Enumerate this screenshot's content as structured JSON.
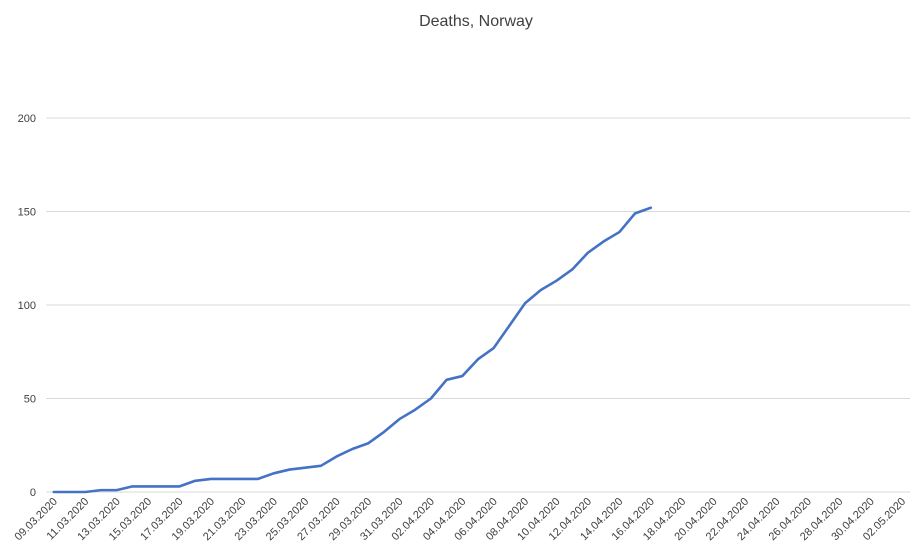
{
  "chart_data": {
    "type": "line",
    "title": "Deaths, Norway",
    "xlabel": "",
    "ylabel": "",
    "ylim": [
      0,
      200
    ],
    "yticks": [
      0,
      50,
      100,
      150,
      200
    ],
    "grid": true,
    "legend": "none",
    "line_color": "#4472c4",
    "x_start": "09.03.2020",
    "x_end": "03.05.2020",
    "x_tick_labels": [
      "09.03.2020",
      "11.03.2020",
      "13.03.2020",
      "15.03.2020",
      "17.03.2020",
      "19.03.2020",
      "21.03.2020",
      "23.03.2020",
      "25.03.2020",
      "27.03.2020",
      "29.03.2020",
      "31.03.2020",
      "02.04.2020",
      "04.04.2020",
      "06.04.2020",
      "08.04.2020",
      "10.04.2020",
      "12.04.2020",
      "14.04.2020",
      "16.04.2020",
      "18.04.2020",
      "20.04.2020",
      "22.04.2020",
      "24.04.2020",
      "26.04.2020",
      "28.04.2020",
      "30.04.2020",
      "02.05.2020"
    ],
    "series": [
      {
        "x": [
          "09.03.2020",
          "10.03.2020",
          "11.03.2020",
          "12.03.2020",
          "13.03.2020",
          "14.03.2020",
          "15.03.2020",
          "16.03.2020",
          "17.03.2020",
          "18.03.2020",
          "19.03.2020",
          "20.03.2020",
          "21.03.2020",
          "22.03.2020",
          "23.03.2020",
          "24.03.2020",
          "25.03.2020",
          "26.03.2020",
          "27.03.2020",
          "28.03.2020",
          "29.03.2020",
          "30.03.2020",
          "31.03.2020",
          "01.04.2020",
          "02.04.2020",
          "03.04.2020",
          "04.04.2020",
          "05.04.2020",
          "06.04.2020",
          "07.04.2020",
          "08.04.2020",
          "09.04.2020",
          "10.04.2020",
          "11.04.2020",
          "12.04.2020",
          "13.04.2020",
          "14.04.2020",
          "15.04.2020",
          "16.04.2020"
        ],
        "values": [
          0,
          0,
          0,
          1,
          1,
          3,
          3,
          3,
          3,
          6,
          7,
          7,
          7,
          7,
          10,
          12,
          13,
          14,
          19,
          23,
          26,
          32,
          39,
          44,
          50,
          60,
          62,
          71,
          77,
          89,
          101,
          108,
          113,
          119,
          128,
          134,
          139,
          149,
          152
        ]
      }
    ]
  }
}
